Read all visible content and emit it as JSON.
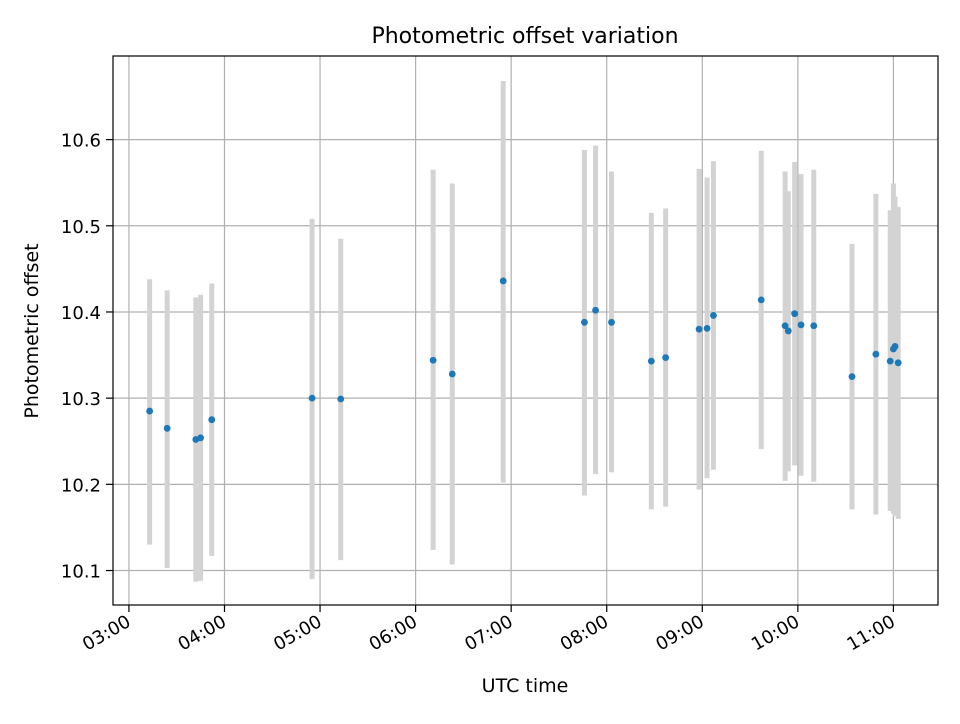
{
  "chart_data": {
    "type": "scatter",
    "title": "Photometric offset variation",
    "xlabel": "UTC time",
    "ylabel": "Photometric offset",
    "xlim": [
      "02:50",
      "11:28"
    ],
    "ylim": [
      10.06,
      10.697
    ],
    "x_ticks": [
      "03:00",
      "04:00",
      "05:00",
      "06:00",
      "07:00",
      "08:00",
      "09:00",
      "10:00",
      "11:00"
    ],
    "y_ticks": [
      10.1,
      10.2,
      10.3,
      10.4,
      10.5,
      10.6
    ],
    "grid": true,
    "colors": {
      "point": "#1f77b4",
      "errorbar": "#d3d3d3",
      "grid": "#b0b0b0",
      "axis": "#000000"
    },
    "series": [
      {
        "points": [
          {
            "x": "03:13",
            "y": 10.285,
            "yerr_low": 10.13,
            "yerr_high": 10.438
          },
          {
            "x": "03:24",
            "y": 10.265,
            "yerr_low": 10.103,
            "yerr_high": 10.425
          },
          {
            "x": "03:42",
            "y": 10.252,
            "yerr_low": 10.087,
            "yerr_high": 10.417
          },
          {
            "x": "03:45",
            "y": 10.254,
            "yerr_low": 10.088,
            "yerr_high": 10.42
          },
          {
            "x": "03:52",
            "y": 10.275,
            "yerr_low": 10.117,
            "yerr_high": 10.433
          },
          {
            "x": "04:55",
            "y": 10.3,
            "yerr_low": 10.09,
            "yerr_high": 10.508
          },
          {
            "x": "05:13",
            "y": 10.299,
            "yerr_low": 10.112,
            "yerr_high": 10.485
          },
          {
            "x": "06:11",
            "y": 10.344,
            "yerr_low": 10.124,
            "yerr_high": 10.565
          },
          {
            "x": "06:23",
            "y": 10.328,
            "yerr_low": 10.107,
            "yerr_high": 10.549
          },
          {
            "x": "06:55",
            "y": 10.436,
            "yerr_low": 10.202,
            "yerr_high": 10.668
          },
          {
            "x": "07:46",
            "y": 10.388,
            "yerr_low": 10.187,
            "yerr_high": 10.588
          },
          {
            "x": "07:53",
            "y": 10.402,
            "yerr_low": 10.212,
            "yerr_high": 10.593
          },
          {
            "x": "08:03",
            "y": 10.388,
            "yerr_low": 10.214,
            "yerr_high": 10.563
          },
          {
            "x": "08:28",
            "y": 10.343,
            "yerr_low": 10.171,
            "yerr_high": 10.515
          },
          {
            "x": "08:37",
            "y": 10.347,
            "yerr_low": 10.174,
            "yerr_high": 10.52
          },
          {
            "x": "08:58",
            "y": 10.38,
            "yerr_low": 10.194,
            "yerr_high": 10.566
          },
          {
            "x": "09:03",
            "y": 10.381,
            "yerr_low": 10.207,
            "yerr_high": 10.556
          },
          {
            "x": "09:07",
            "y": 10.396,
            "yerr_low": 10.217,
            "yerr_high": 10.575
          },
          {
            "x": "09:37",
            "y": 10.414,
            "yerr_low": 10.241,
            "yerr_high": 10.587
          },
          {
            "x": "09:52",
            "y": 10.384,
            "yerr_low": 10.204,
            "yerr_high": 10.563
          },
          {
            "x": "09:54",
            "y": 10.378,
            "yerr_low": 10.215,
            "yerr_high": 10.54
          },
          {
            "x": "09:58",
            "y": 10.398,
            "yerr_low": 10.222,
            "yerr_high": 10.574
          },
          {
            "x": "10:02",
            "y": 10.385,
            "yerr_low": 10.21,
            "yerr_high": 10.56
          },
          {
            "x": "10:10",
            "y": 10.384,
            "yerr_low": 10.203,
            "yerr_high": 10.565
          },
          {
            "x": "10:34",
            "y": 10.325,
            "yerr_low": 10.171,
            "yerr_high": 10.479
          },
          {
            "x": "10:49",
            "y": 10.351,
            "yerr_low": 10.165,
            "yerr_high": 10.537
          },
          {
            "x": "10:58",
            "y": 10.343,
            "yerr_low": 10.169,
            "yerr_high": 10.518
          },
          {
            "x": "11:00",
            "y": 10.357,
            "yerr_low": 10.166,
            "yerr_high": 10.549
          },
          {
            "x": "11:01",
            "y": 10.36,
            "yerr_low": 10.163,
            "yerr_high": 10.534
          },
          {
            "x": "11:03",
            "y": 10.341,
            "yerr_low": 10.16,
            "yerr_high": 10.522
          }
        ]
      }
    ]
  }
}
